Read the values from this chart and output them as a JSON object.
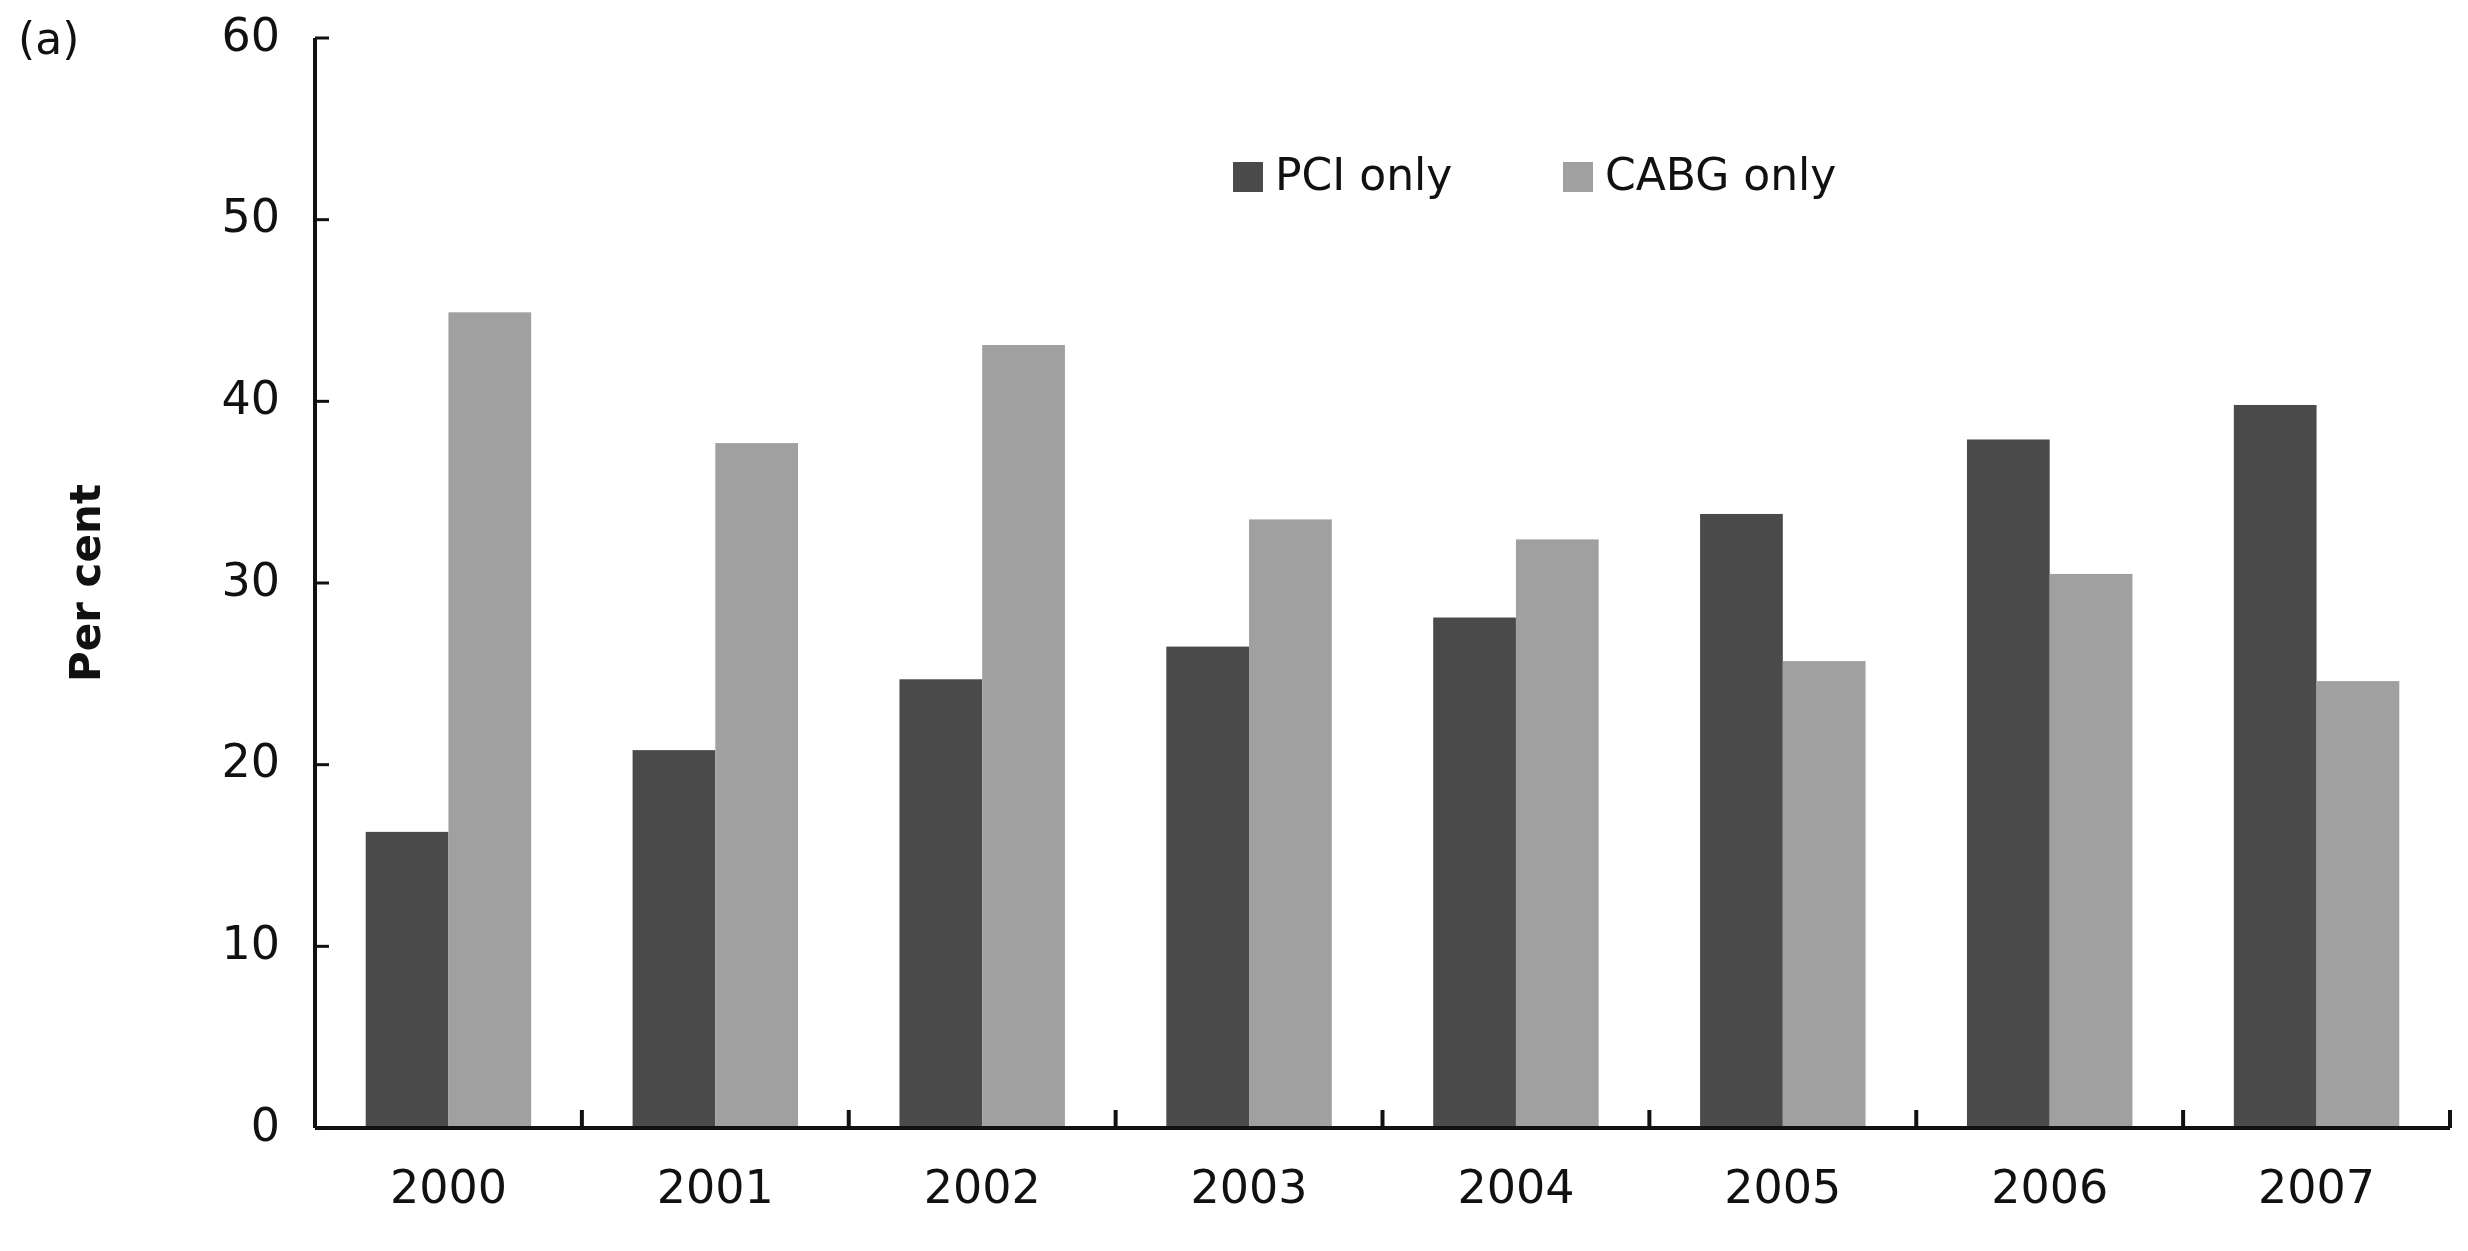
{
  "chart_data": {
    "type": "bar",
    "ylabel": "Per cent",
    "annotations": [
      "(a)"
    ],
    "categories": [
      "2000",
      "2001",
      "2002",
      "2003",
      "2004",
      "2005",
      "2006",
      "2007"
    ],
    "series": [
      {
        "name": "PCI only",
        "color": "#4a4a4a",
        "values": [
          16.3,
          20.8,
          24.7,
          26.5,
          28.1,
          33.8,
          37.9,
          39.8
        ]
      },
      {
        "name": "CABG only",
        "color": "#a0a0a0",
        "values": [
          44.9,
          37.7,
          43.1,
          33.5,
          32.4,
          25.7,
          30.5,
          24.6
        ]
      }
    ],
    "ylim": [
      0,
      60
    ],
    "yticks": [
      0,
      10,
      20,
      30,
      40,
      50,
      60
    ],
    "grid": false,
    "legend": "top right"
  }
}
